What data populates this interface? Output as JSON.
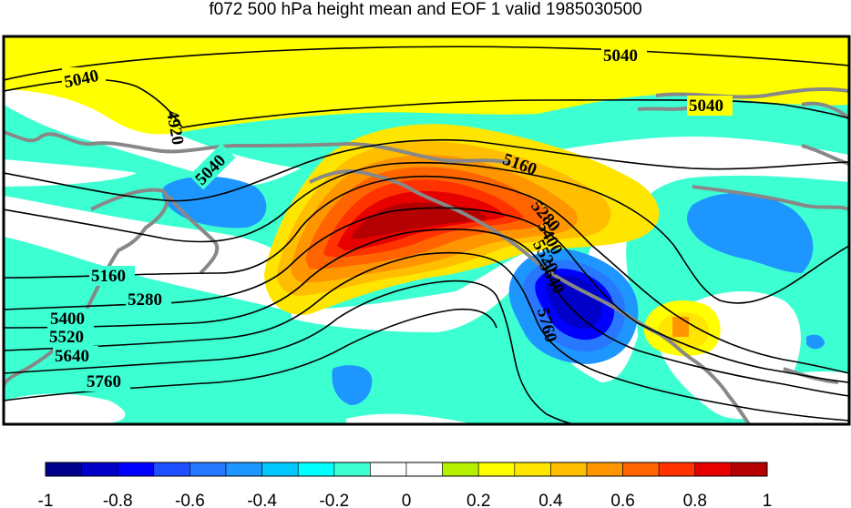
{
  "title": "f072 500 hPa height mean and EOF 1 valid 1985030500",
  "colorbar": {
    "colors": [
      "#00008c",
      "#0000c8",
      "#0000ff",
      "#1e50ff",
      "#2878ff",
      "#1e96ff",
      "#00c8ff",
      "#00ffff",
      "#3cffd2",
      "#ffffff",
      "#ffffff",
      "#b4f000",
      "#ffff00",
      "#ffe600",
      "#ffbe00",
      "#ff9600",
      "#ff6400",
      "#ff3200",
      "#e60000",
      "#b40000"
    ],
    "ticks": [
      "-1",
      "-0.8",
      "-0.6",
      "-0.4",
      "-0.2",
      "0",
      "0.2",
      "0.4",
      "0.6",
      "0.8",
      "1"
    ]
  },
  "contour_labels": [
    "5040",
    "5040",
    "5040",
    "4920",
    "5040",
    "5160",
    "5160",
    "5280",
    "5280",
    "5400",
    "5520",
    "5640",
    "5760",
    "5400",
    "5520",
    "5640",
    "5760"
  ]
}
